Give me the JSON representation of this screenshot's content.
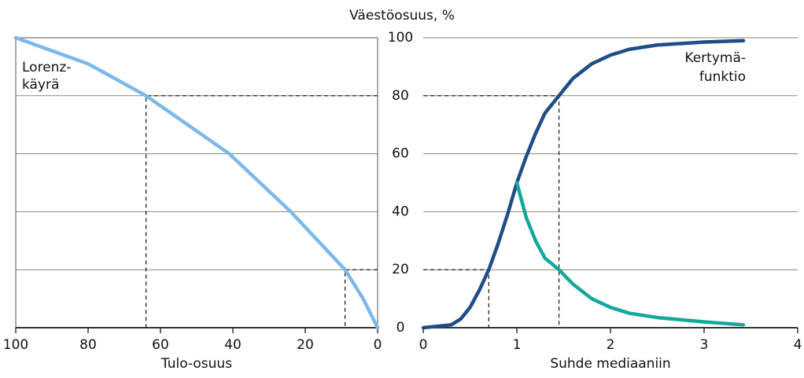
{
  "chart_data": [
    {
      "type": "line",
      "ylabel": "Väestöosuus, %",
      "xlabel": "Tulo-osuus",
      "xlim": [
        100,
        0
      ],
      "xticks": [
        100,
        80,
        60,
        40,
        20,
        0
      ],
      "ylim": [
        0,
        100
      ],
      "yticks": [
        0,
        20,
        40,
        60,
        80,
        100
      ],
      "grid": true,
      "frame": true,
      "series": [
        {
          "color": "#7cb9e8",
          "x": [
            100,
            80,
            64,
            41,
            24,
            9,
            4,
            0
          ],
          "values": [
            100,
            91,
            80,
            60,
            40,
            20,
            10,
            0
          ]
        }
      ],
      "reference_points": [
        [
          64,
          80
        ],
        [
          9,
          20
        ]
      ],
      "annotations": [
        "Lorenz-",
        "käyrä"
      ]
    },
    {
      "type": "line",
      "xlabel": "Suhde mediaaniin",
      "xlim": [
        0,
        4
      ],
      "xticks": [
        0,
        1,
        2,
        3,
        4
      ],
      "ylim": [
        0,
        100
      ],
      "yticks": [
        0,
        20,
        40,
        60,
        80,
        100
      ],
      "grid": true,
      "frame": false,
      "series": [
        {
          "color": "#1f4e87",
          "x": [
            0,
            0.3,
            0.4,
            0.5,
            0.6,
            0.7,
            0.8,
            0.9,
            1.0,
            1.1,
            1.2,
            1.3,
            1.45,
            1.6,
            1.8,
            2.0,
            2.2,
            2.5,
            3.0,
            3.42
          ],
          "values": [
            0,
            1,
            3,
            7,
            13,
            20,
            29,
            39,
            50,
            59,
            67,
            74,
            80,
            86,
            91,
            94,
            96,
            97.5,
            98.5,
            99
          ]
        },
        {
          "color": "#14a89c",
          "x": [
            1.0,
            1.1,
            1.2,
            1.3,
            1.45,
            1.6,
            1.8,
            2.0,
            2.2,
            2.5,
            3.0,
            3.42
          ],
          "values": [
            50,
            38,
            30,
            24,
            20,
            15,
            10,
            7,
            5,
            3.5,
            2,
            1
          ]
        }
      ],
      "reference_points": [
        [
          1.45,
          80
        ],
        [
          0.7,
          20
        ]
      ],
      "annotations": [
        "Kertymä-",
        "funktio"
      ]
    }
  ]
}
